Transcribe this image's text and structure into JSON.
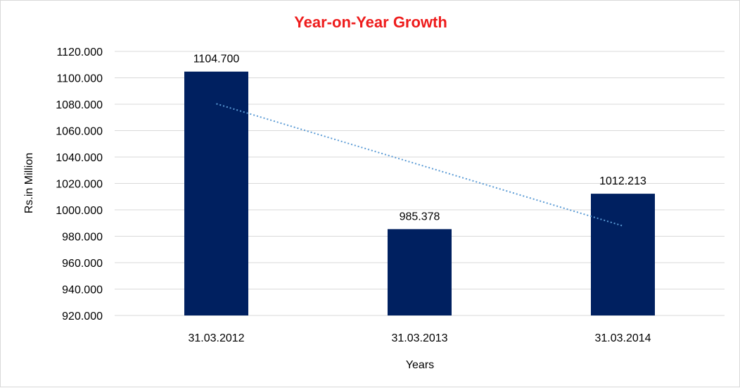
{
  "colors": {
    "title": "#ee1c1c",
    "bar": "#002060",
    "trendline": "#5b9bd5",
    "gridline": "#d9d9d9"
  },
  "chart_data": {
    "type": "bar",
    "title": "Year-on-Year Growth",
    "xlabel": "Years",
    "ylabel": "Rs.in Million",
    "categories": [
      "31.03.2012",
      "31.03.2013",
      "31.03.2014"
    ],
    "values": [
      1104.7,
      985.378,
      1012.213
    ],
    "data_labels": [
      "1104.700",
      "985.378",
      "1012.213"
    ],
    "ylim": [
      920,
      1120
    ],
    "y_ticks": [
      "920.000",
      "940.000",
      "960.000",
      "980.000",
      "1000.000",
      "1020.000",
      "1040.000",
      "1060.000",
      "1080.000",
      "1100.000",
      "1120.000"
    ],
    "grid": true,
    "trendline": "linear",
    "legend": "none"
  }
}
